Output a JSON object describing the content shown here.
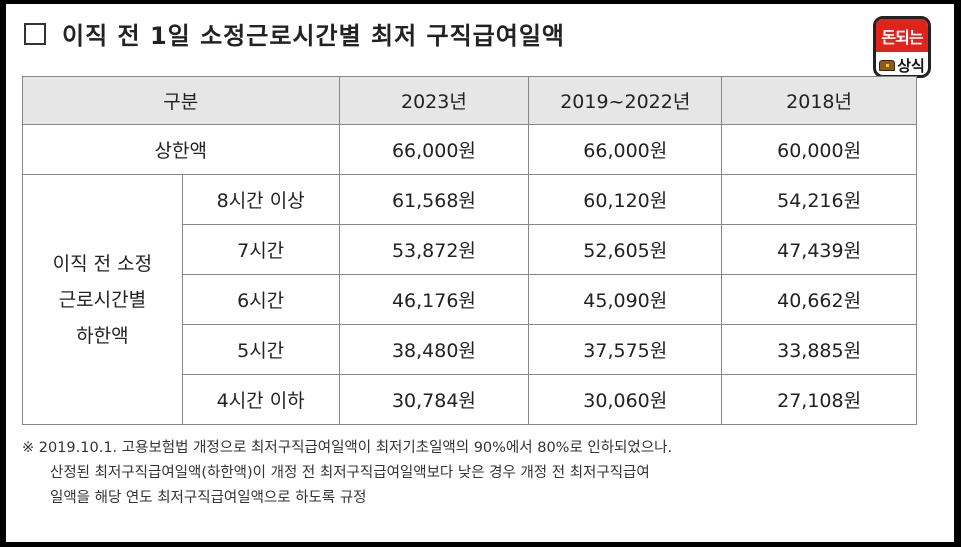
{
  "title": "이직 전 1일 소정근로시간별 최저 구직급여일액",
  "logo": {
    "top_text": "돈되는",
    "bottom_text": "상식",
    "icon": "treasure-chest-icon"
  },
  "table": {
    "headers": [
      "구분",
      "2023년",
      "2019~2022년",
      "2018년"
    ],
    "max_row": {
      "label": "상한액",
      "values": [
        "66,000원",
        "66,000원",
        "60,000원"
      ]
    },
    "group_label_lines": [
      "이직 전 소정",
      "근로시간별",
      "하한액"
    ],
    "rows": [
      {
        "label": "8시간 이상",
        "values": [
          "61,568원",
          "60,120원",
          "54,216원"
        ]
      },
      {
        "label": "7시간",
        "values": [
          "53,872원",
          "52,605원",
          "47,439원"
        ]
      },
      {
        "label": "6시간",
        "values": [
          "46,176원",
          "45,090원",
          "40,662원"
        ]
      },
      {
        "label": "5시간",
        "values": [
          "38,480원",
          "37,575원",
          "33,885원"
        ]
      },
      {
        "label": "4시간 이하",
        "values": [
          "30,784원",
          "30,060원",
          "27,108원"
        ]
      }
    ]
  },
  "notes": [
    "※ 2019.10.1. 고용보험법 개정으로 최저구직급여일액이 최저기초일액의 90%에서 80%로 인하되었으나.",
    "산정된 최저구직급여일액(하한액)이 개정 전 최저구직급여일액보다 낮은 경우 개정 전 최저구직급여",
    "일액을 해당 연도 최저구직급여일액으로 하도록 규정"
  ]
}
